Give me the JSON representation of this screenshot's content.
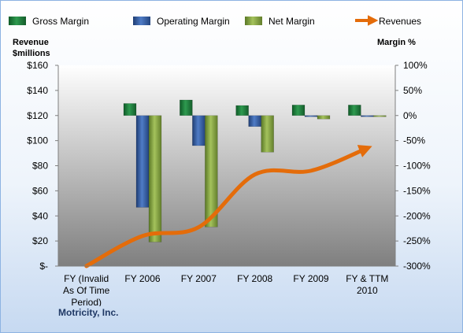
{
  "chart_data": {
    "type": "bar+line",
    "categories": [
      [
        "FY (Invalid",
        "As Of Time",
        "Period)"
      ],
      [
        "FY 2006"
      ],
      [
        "FY 2007"
      ],
      [
        "FY 2008"
      ],
      [
        "FY 2009"
      ],
      [
        "FY & TTM",
        "2010"
      ]
    ],
    "legend": {
      "position": "top",
      "items": [
        {
          "name": "Gross Margin",
          "kind": "bar",
          "color": "#1e7d3c"
        },
        {
          "name": "Operating Margin",
          "kind": "bar",
          "color": "#2e5597"
        },
        {
          "name": "Net Margin",
          "kind": "bar",
          "color": "#7a9a3a"
        },
        {
          "name": "Revenues",
          "kind": "line",
          "color": "#e46c0a"
        }
      ]
    },
    "left_axis": {
      "title": [
        "Revenue",
        "$millions"
      ],
      "ylim": [
        0,
        160
      ],
      "ticks": [
        0,
        20,
        40,
        60,
        80,
        100,
        120,
        140,
        160
      ],
      "tick_labels": [
        "$-",
        "$20",
        "$40",
        "$60",
        "$80",
        "$100",
        "$120",
        "$140",
        "$160"
      ]
    },
    "right_axis": {
      "title": "Margin %",
      "ylim": [
        -300,
        100
      ],
      "ticks": [
        100,
        50,
        0,
        -50,
        -100,
        -150,
        -200,
        -250,
        -300
      ],
      "tick_labels": [
        "100%",
        "50%",
        "0%",
        "-50%",
        "-100%",
        "-150%",
        "-200%",
        "-250%",
        "-300%"
      ]
    },
    "series": [
      {
        "name": "Gross Margin",
        "axis": "right",
        "values": [
          null,
          24,
          31,
          20,
          21,
          21
        ]
      },
      {
        "name": "Operating Margin",
        "axis": "right",
        "values": [
          null,
          -183,
          -60,
          -22,
          -2,
          -2
        ]
      },
      {
        "name": "Net Margin",
        "axis": "right",
        "values": [
          null,
          -252,
          -222,
          -73,
          -7,
          -1
        ]
      },
      {
        "name": "Revenues",
        "axis": "left",
        "type": "line",
        "values": [
          0,
          24,
          31,
          73,
          76,
          94
        ]
      }
    ],
    "grid": false
  },
  "footer": "Motricity, Inc.",
  "colors": {
    "plot_top": "#ffffff",
    "plot_bottom": "#7f7f7f",
    "axis_text": "#000000"
  }
}
